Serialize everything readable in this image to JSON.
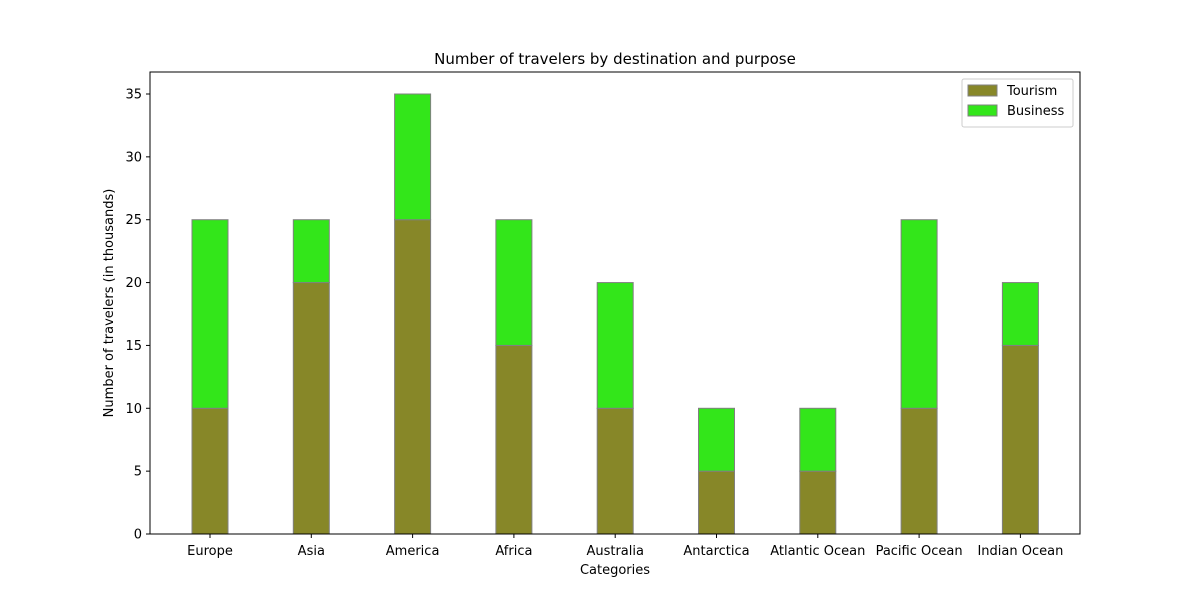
{
  "chart_data": {
    "type": "bar",
    "stacked": true,
    "title": "Number of travelers by destination and purpose",
    "xlabel": "Categories",
    "ylabel": "Number of travelers (in thousands)",
    "categories": [
      "Europe",
      "Asia",
      "America",
      "Africa",
      "Australia",
      "Antarctica",
      "Atlantic Ocean",
      "Pacific Ocean",
      "Indian Ocean"
    ],
    "series": [
      {
        "name": "Tourism",
        "values": [
          10,
          20,
          25,
          15,
          10,
          5,
          5,
          10,
          15
        ],
        "color": "#878728"
      },
      {
        "name": "Business",
        "values": [
          15,
          5,
          10,
          10,
          10,
          5,
          5,
          15,
          5
        ],
        "color": "#33e61a"
      }
    ],
    "ylim": [
      0,
      36.75
    ],
    "yticks": [
      0,
      5,
      10,
      15,
      20,
      25,
      30,
      35
    ],
    "grid": false,
    "legend_position": "top-right",
    "bar_edge_color": "#808080"
  }
}
